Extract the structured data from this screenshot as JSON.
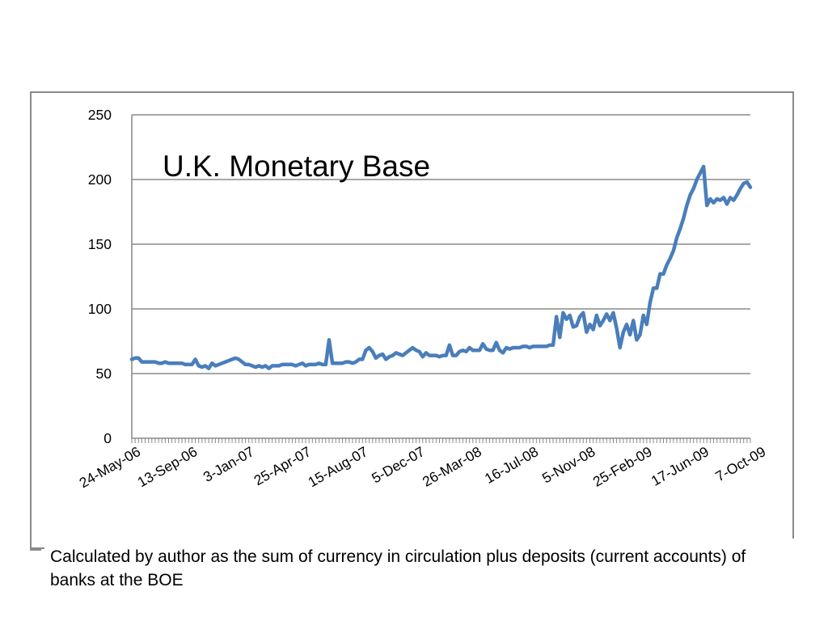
{
  "caption": "Calculated by author as the sum of currency in circulation plus deposits (current accounts) of banks at the BOE",
  "chart_data": {
    "type": "line",
    "title": "U.K. Monetary Base",
    "xlabel": "",
    "ylabel": "",
    "ylim": [
      0,
      250
    ],
    "yticks": [
      0,
      50,
      100,
      150,
      200,
      250
    ],
    "grid": true,
    "x_tick_labels": [
      "24-May-06",
      "13-Sep-06",
      "3-Jan-07",
      "25-Apr-07",
      "15-Aug-07",
      "5-Dec-07",
      "26-Mar-08",
      "16-Jul-08",
      "5-Nov-08",
      "25-Feb-09",
      "17-Jun-09",
      "7-Oct-09"
    ],
    "line_color": "#4a7ebb",
    "series": [
      {
        "values": [
          61,
          62,
          62,
          59,
          59,
          59,
          59,
          59,
          58,
          58,
          59,
          58,
          58,
          58,
          58,
          58,
          57,
          57,
          57,
          61,
          56,
          55,
          56,
          54,
          58,
          56,
          57,
          58,
          59,
          60,
          61,
          62,
          61,
          59,
          57,
          57,
          56,
          55,
          56,
          55,
          56,
          54,
          56,
          56,
          56,
          57,
          57,
          57,
          57,
          56,
          57,
          58,
          56,
          57,
          57,
          57,
          58,
          57,
          57,
          76,
          58,
          58,
          58,
          58,
          59,
          59,
          58,
          59,
          61,
          61,
          68,
          70,
          67,
          62,
          64,
          65,
          61,
          63,
          64,
          66,
          65,
          64,
          66,
          68,
          70,
          68,
          67,
          63,
          66,
          64,
          64,
          64,
          63,
          64,
          64,
          72,
          64,
          64,
          67,
          68,
          67,
          70,
          68,
          68,
          68,
          73,
          69,
          68,
          68,
          74,
          68,
          66,
          70,
          69,
          70,
          70,
          70,
          71,
          71,
          70,
          71,
          71,
          71,
          71,
          71,
          72,
          72,
          94,
          78,
          97,
          92,
          95,
          86,
          87,
          94,
          97,
          82,
          88,
          84,
          95,
          87,
          91,
          96,
          91,
          97,
          85,
          70,
          82,
          88,
          80,
          91,
          76,
          80,
          95,
          88,
          105,
          116,
          116,
          127,
          127,
          134,
          139,
          145,
          155,
          162,
          170,
          180,
          188,
          193,
          200,
          205,
          210,
          180,
          185,
          182,
          185,
          184,
          186,
          181,
          186,
          184,
          188,
          193,
          197,
          198,
          194
        ]
      }
    ]
  }
}
